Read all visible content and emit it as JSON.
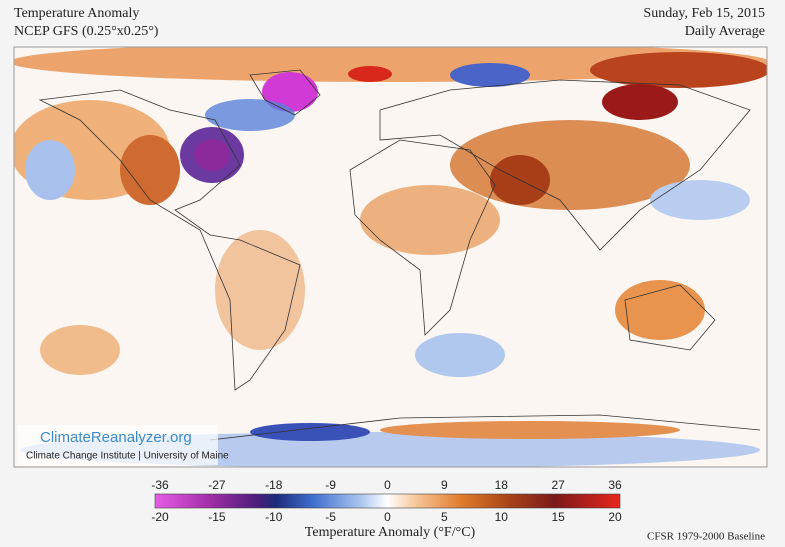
{
  "header": {
    "title": "Temperature Anomaly",
    "model": "NCEP GFS (0.25°x0.25°)",
    "date": "Sunday, Feb 15, 2015",
    "period": "Daily Average"
  },
  "logo": {
    "name": "ClimateReanalyzer.org",
    "institution": "Climate Change Institute | University of Maine"
  },
  "colorbar": {
    "fahrenheit_ticks": [
      -36,
      -27,
      -18,
      -9,
      0,
      9,
      18,
      27,
      36
    ],
    "celsius_ticks": [
      -20,
      -15,
      -10,
      -5,
      0,
      5,
      10,
      15,
      20
    ],
    "label": "Temperature Anomaly (°F/°C)"
  },
  "footer": {
    "baseline": "CFSR 1979-2000 Baseline"
  }
}
